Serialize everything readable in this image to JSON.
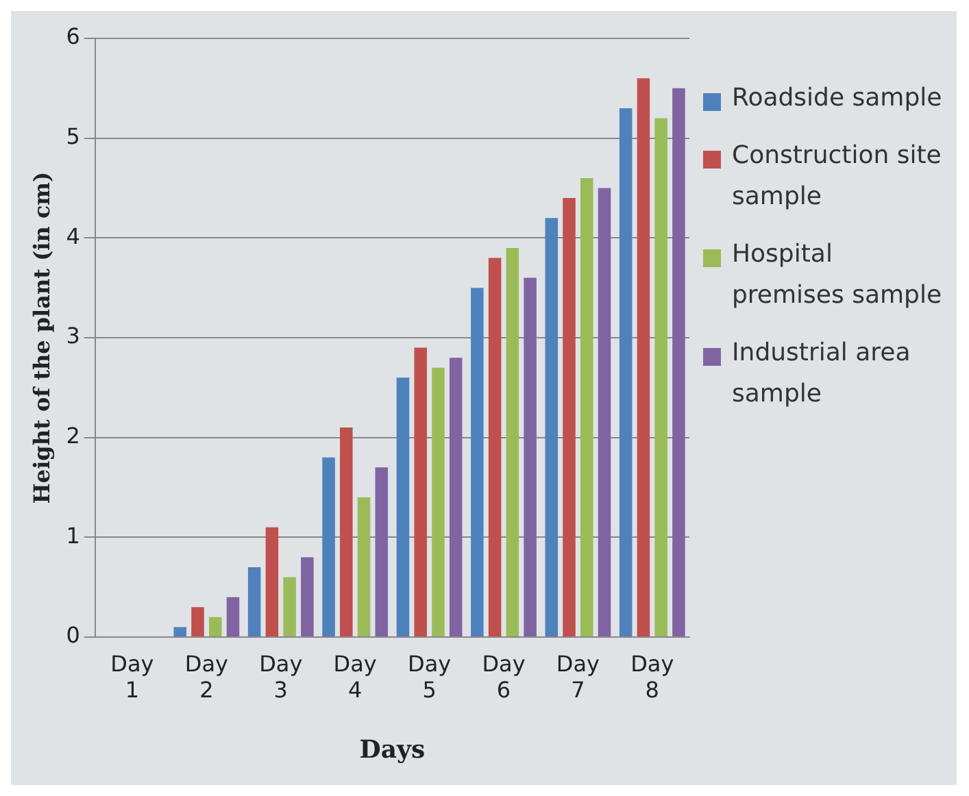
{
  "chart_data": {
    "type": "bar",
    "xlabel": "Days",
    "ylabel": "Height of the plant (in cm)",
    "categories": [
      "Day 1",
      "Day 2",
      "Day 3",
      "Day 4",
      "Day 5",
      "Day 6",
      "Day 7",
      "Day 8"
    ],
    "series": [
      {
        "name": "Roadside sample",
        "color": "#4f81bd",
        "values": [
          0,
          0.1,
          0.7,
          1.8,
          2.6,
          3.5,
          4.2,
          5.3
        ]
      },
      {
        "name": "Construction site sample",
        "color": "#c0504d",
        "values": [
          0,
          0.3,
          1.1,
          2.1,
          2.9,
          3.8,
          4.4,
          5.6
        ]
      },
      {
        "name": "Hospital premises sample",
        "color": "#9bbb59",
        "values": [
          0,
          0.2,
          0.6,
          1.4,
          2.7,
          3.9,
          4.6,
          5.2
        ]
      },
      {
        "name": "Industrial area sample",
        "color": "#8064a2",
        "values": [
          0,
          0.4,
          0.8,
          1.7,
          2.8,
          3.6,
          4.5,
          5.5
        ]
      }
    ],
    "ylim": [
      0,
      6
    ],
    "yticks": [
      0,
      1,
      2,
      3,
      4,
      5,
      6
    ],
    "grid": "y",
    "legend": "right"
  }
}
